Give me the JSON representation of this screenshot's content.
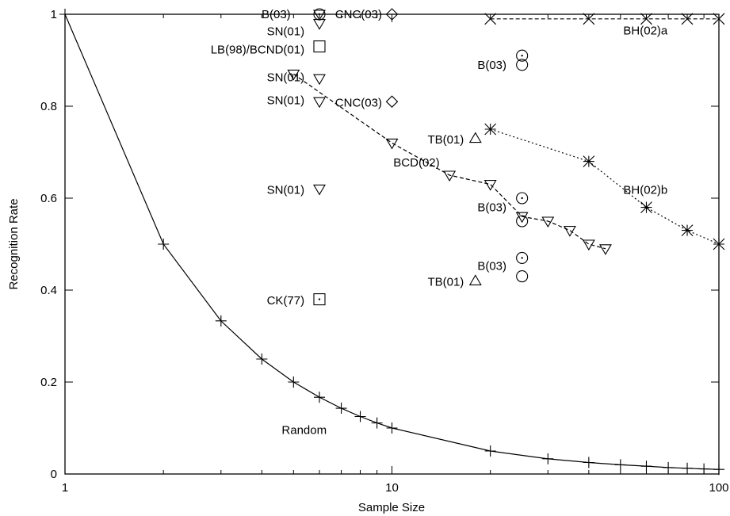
{
  "chart_data": {
    "type": "scatter",
    "xlabel": "Sample Size",
    "ylabel": "Recognition Rate",
    "xscale": "log",
    "xlim": [
      1,
      100
    ],
    "ylim": [
      0,
      1
    ],
    "grid": false,
    "x_ticks": [
      {
        "value": 1,
        "label": "1"
      },
      {
        "value": 10,
        "label": "10"
      },
      {
        "value": 100,
        "label": "100"
      }
    ],
    "y_ticks": [
      {
        "value": 0,
        "label": "0"
      },
      {
        "value": 0.2,
        "label": "0.2"
      },
      {
        "value": 0.4,
        "label": "0.4"
      },
      {
        "value": 0.6,
        "label": "0.6"
      },
      {
        "value": 0.8,
        "label": "0.8"
      },
      {
        "value": 1,
        "label": "1"
      }
    ],
    "lines": [
      {
        "name": "Random",
        "marker": "plus",
        "dash": "solid",
        "x": [
          1,
          2,
          3,
          4,
          5,
          6,
          7,
          8,
          9,
          10,
          20,
          30,
          40,
          50,
          60,
          70,
          80,
          90,
          100
        ],
        "y": [
          1,
          0.5,
          0.333,
          0.25,
          0.2,
          0.167,
          0.143,
          0.125,
          0.111,
          0.1,
          0.05,
          0.033,
          0.025,
          0.02,
          0.017,
          0.014,
          0.0125,
          0.011,
          0.01
        ]
      },
      {
        "name": "BCD(02)",
        "marker": "tri-down-filled",
        "dash": "dashed",
        "x": [
          5,
          10,
          15,
          20,
          25,
          30,
          35,
          40,
          45
        ],
        "y": [
          0.87,
          0.72,
          0.65,
          0.63,
          0.56,
          0.55,
          0.53,
          0.5,
          0.49
        ]
      },
      {
        "name": "BH(02)a",
        "marker": "x",
        "dash": "dashed",
        "x": [
          20,
          40,
          60,
          80,
          100
        ],
        "y": [
          0.99,
          0.99,
          0.99,
          0.99,
          0.99
        ]
      },
      {
        "name": "BH(02)b",
        "marker": "star",
        "dash": "dotted",
        "x": [
          20,
          40,
          60,
          80,
          100
        ],
        "y": [
          0.75,
          0.68,
          0.58,
          0.53,
          0.5
        ]
      }
    ],
    "points": [
      {
        "marker": "circle-dot",
        "x": 6,
        "y": 1.0
      },
      {
        "marker": "tri-down-open",
        "x": 6,
        "y": 1.0
      },
      {
        "marker": "diamond",
        "x": 10,
        "y": 1.0
      },
      {
        "marker": "tri-down-open",
        "x": 6,
        "y": 0.98
      },
      {
        "marker": "square-filled",
        "x": 6,
        "y": 0.93
      },
      {
        "marker": "tri-down-open",
        "x": 6,
        "y": 0.86
      },
      {
        "marker": "tri-down-open",
        "x": 6,
        "y": 0.81
      },
      {
        "marker": "diamond",
        "x": 10,
        "y": 0.81
      },
      {
        "marker": "tri-down-open",
        "x": 6,
        "y": 0.62
      },
      {
        "marker": "square-dot",
        "x": 6,
        "y": 0.38
      },
      {
        "marker": "circle-dot",
        "x": 25,
        "y": 0.91
      },
      {
        "marker": "circle-filled",
        "x": 25,
        "y": 0.89
      },
      {
        "marker": "circle-dot",
        "x": 25,
        "y": 0.6
      },
      {
        "marker": "circle-filled",
        "x": 25,
        "y": 0.55
      },
      {
        "marker": "circle-dot",
        "x": 25,
        "y": 0.47
      },
      {
        "marker": "circle-filled",
        "x": 25,
        "y": 0.43
      },
      {
        "marker": "tri-up-open",
        "x": 18,
        "y": 0.73
      },
      {
        "marker": "tri-up-open",
        "x": 18,
        "y": 0.42
      }
    ],
    "annotations": [
      {
        "text": "B(03)",
        "x": 4.9,
        "y": 1.0,
        "anchor": "end"
      },
      {
        "text": "CNC(03)",
        "x": 6.7,
        "y": 1.0,
        "anchor": "start"
      },
      {
        "text": "SN(01)",
        "x": 5.4,
        "y": 0.963,
        "anchor": "end"
      },
      {
        "text": "LB(98)/BCND(01)",
        "x": 5.4,
        "y": 0.923,
        "anchor": "end"
      },
      {
        "text": "SN(01)",
        "x": 5.4,
        "y": 0.863,
        "anchor": "end"
      },
      {
        "text": "SN(01)",
        "x": 5.4,
        "y": 0.813,
        "anchor": "end"
      },
      {
        "text": "CNC(03)",
        "x": 6.7,
        "y": 0.808,
        "anchor": "start"
      },
      {
        "text": "SN(01)",
        "x": 5.4,
        "y": 0.618,
        "anchor": "end"
      },
      {
        "text": "CK(77)",
        "x": 5.4,
        "y": 0.378,
        "anchor": "end"
      },
      {
        "text": "Random",
        "x": 4.6,
        "y": 0.096,
        "anchor": "start"
      },
      {
        "text": "BCD(02)",
        "x": 10.1,
        "y": 0.678,
        "anchor": "start"
      },
      {
        "text": "TB(01)",
        "x": 16.6,
        "y": 0.728,
        "anchor": "end"
      },
      {
        "text": "TB(01)",
        "x": 16.6,
        "y": 0.418,
        "anchor": "end"
      },
      {
        "text": "B(03)",
        "x": 22.4,
        "y": 0.89,
        "anchor": "end"
      },
      {
        "text": "B(03)",
        "x": 22.4,
        "y": 0.58,
        "anchor": "end"
      },
      {
        "text": "B(03)",
        "x": 22.4,
        "y": 0.453,
        "anchor": "end"
      },
      {
        "text": "BH(02)a",
        "x": 51,
        "y": 0.965,
        "anchor": "start"
      },
      {
        "text": "BH(02)b",
        "x": 51,
        "y": 0.618,
        "anchor": "start"
      }
    ]
  }
}
